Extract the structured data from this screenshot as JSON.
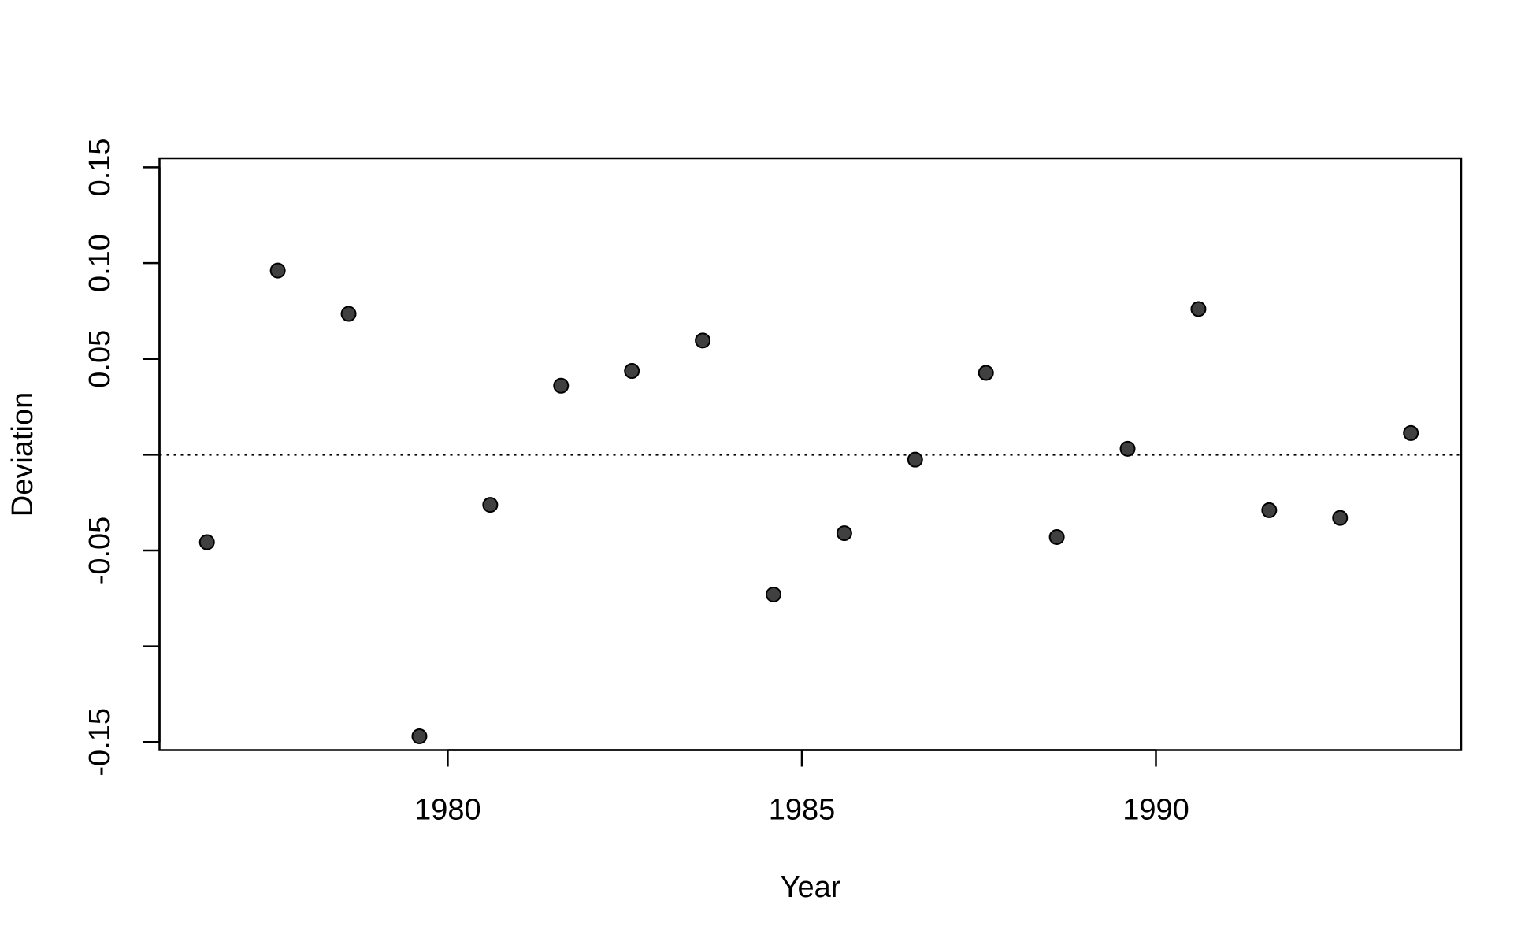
{
  "chart_data": {
    "type": "scatter",
    "x_label": "Year",
    "y_label": "Deviation",
    "x": [
      1976.6,
      1977.6,
      1978.6,
      1979.6,
      1980.6,
      1981.6,
      1982.6,
      1983.6,
      1984.6,
      1985.6,
      1986.6,
      1987.6,
      1988.6,
      1989.6,
      1990.6,
      1991.6,
      1992.6,
      1993.6
    ],
    "values": [
      -0.0457,
      0.0961,
      0.0735,
      -0.147,
      -0.0262,
      0.036,
      0.0437,
      0.0596,
      -0.073,
      -0.041,
      -0.0026,
      0.0427,
      -0.043,
      0.0031,
      0.076,
      -0.029,
      -0.033,
      0.0113
    ],
    "color": "#404040",
    "xlim": [
      1975.93,
      1994.31
    ],
    "ylim": [
      -0.1542,
      0.1547
    ],
    "xticks": [
      1980,
      1985,
      1990
    ],
    "yticks": [
      {
        "value": -0.15,
        "label": "-0.15"
      },
      {
        "value": -0.1,
        "label": null
      },
      {
        "value": -0.05,
        "label": "-0.05"
      },
      {
        "value": 0,
        "label": null
      },
      {
        "value": 0.05,
        "label": "0.05"
      },
      {
        "value": 0.1,
        "label": "0.10"
      },
      {
        "value": 0.15,
        "label": "0.15"
      }
    ],
    "hline": 0
  }
}
